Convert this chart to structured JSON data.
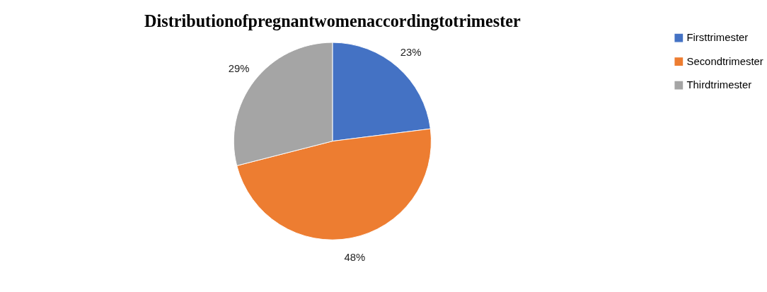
{
  "chart_data": {
    "type": "pie",
    "title": "Distributionofpregnantwomenaccordingtotrimester",
    "categories": [
      "Firsttrimester",
      "Secondtrimester",
      "Thirdtrimester"
    ],
    "values": [
      23,
      48,
      29
    ],
    "colors": [
      "#4472c4",
      "#ed7d31",
      "#a5a5a5"
    ],
    "value_labels": [
      "23%",
      "48%",
      "29%"
    ],
    "legend": "right"
  }
}
